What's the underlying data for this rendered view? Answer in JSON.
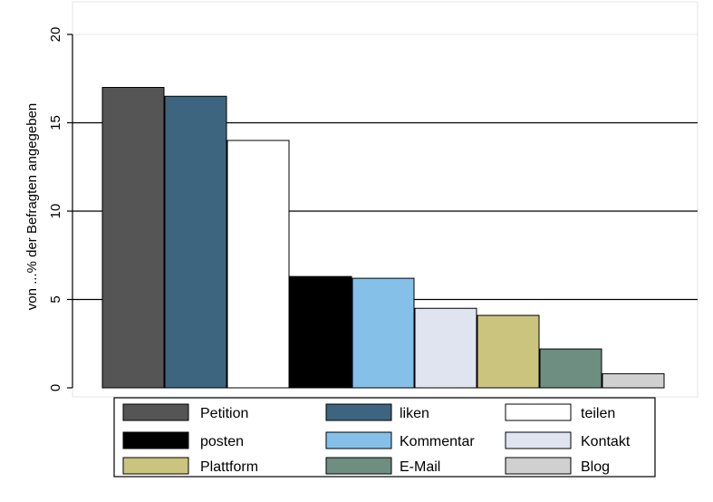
{
  "chart_data": {
    "type": "bar",
    "ylabel": "von ...% der Befragten angegeben",
    "ylim": [
      0,
      20
    ],
    "yticks": [
      0,
      5,
      10,
      15,
      20
    ],
    "grid": true,
    "legend_position": "bottom",
    "series": [
      {
        "name": "Petition",
        "value": 17.0,
        "color": "#555555"
      },
      {
        "name": "liken",
        "value": 16.5,
        "color": "#3d6580"
      },
      {
        "name": "teilen",
        "value": 14.0,
        "color": "#ffffff"
      },
      {
        "name": "posten",
        "value": 6.3,
        "color": "#000000"
      },
      {
        "name": "Kommentar",
        "value": 6.2,
        "color": "#85c0e8"
      },
      {
        "name": "Kontakt",
        "value": 4.5,
        "color": "#e0e4f0"
      },
      {
        "name": "Plattform",
        "value": 4.1,
        "color": "#cbc47e"
      },
      {
        "name": "E-Mail",
        "value": 2.2,
        "color": "#6d8e80"
      },
      {
        "name": "Blog",
        "value": 0.8,
        "color": "#d0d0d0"
      }
    ]
  }
}
